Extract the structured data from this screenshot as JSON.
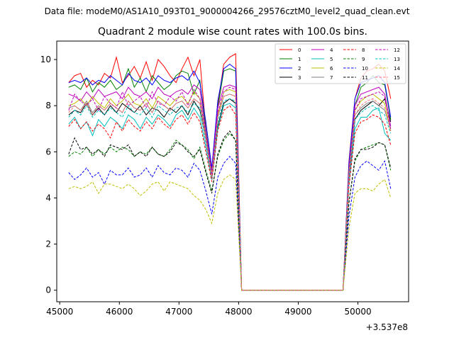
{
  "header": {
    "data_file": "Data file: modeM0/AS1A10_093T01_9000004266_29576cztM0_level2_quad_clean.evt"
  },
  "chart_data": {
    "type": "line",
    "title": "Quadrant 2 module wise count rates with 100.0s bins.",
    "xlabel": "",
    "ylabel": "",
    "x_offset_label": "+3.537e8",
    "xlim": [
      44950,
      50850
    ],
    "ylim": [
      -0.5,
      10.8
    ],
    "x_ticks": [
      45000,
      46000,
      47000,
      48000,
      49000,
      50000
    ],
    "x_tick_labels": [
      "45000",
      "46000",
      "47000",
      "48000",
      "49000",
      "50000"
    ],
    "y_ticks": [
      0,
      2,
      4,
      6,
      8,
      10
    ],
    "y_tick_labels": [
      "0",
      "2",
      "4",
      "6",
      "8",
      "10"
    ],
    "legend_position": "top-right",
    "segments": [
      {
        "x_start": 45150,
        "x_end": 47950,
        "step": 100
      },
      {
        "x_start": 48050,
        "x_end": 49750,
        "step": 100
      },
      {
        "x_start": 49850,
        "x_end": 50550,
        "step": 100
      }
    ],
    "series": [
      {
        "name": "0",
        "color": "#ff0000",
        "dash": false,
        "seg1": [
          9.0,
          9.3,
          9.4,
          8.8,
          9.1,
          8.9,
          9.4,
          9.2,
          10.1,
          9.0,
          9.3,
          9.7,
          9.2,
          9.9,
          9.1,
          10.0,
          9.7,
          9.3,
          9.0,
          9.6,
          10.1,
          9.3,
          10.0,
          7.0,
          5.1,
          8.0,
          9.8,
          10.1,
          10.25
        ],
        "seg3": [
          5.6,
          8.3,
          9.2,
          9.5,
          9.6,
          9.8,
          9.5,
          8.3
        ]
      },
      {
        "name": "1",
        "color": "#008000",
        "dash": false,
        "seg1": [
          8.8,
          8.9,
          8.7,
          9.2,
          8.6,
          9.0,
          8.8,
          9.1,
          8.7,
          8.9,
          9.6,
          8.8,
          9.2,
          8.6,
          9.3,
          9.0,
          8.7,
          8.9,
          9.3,
          9.5,
          9.4,
          8.5,
          9.1,
          7.0,
          5.1,
          7.9,
          9.5,
          9.6,
          9.5
        ],
        "seg3": [
          5.0,
          8.0,
          8.8,
          9.0,
          9.3,
          9.0,
          8.9,
          7.4
        ]
      },
      {
        "name": "2",
        "color": "#0000ff",
        "dash": false,
        "seg1": [
          9.0,
          9.1,
          9.0,
          9.2,
          8.9,
          9.1,
          9.0,
          9.3,
          9.1,
          8.9,
          9.4,
          9.1,
          9.0,
          9.2,
          8.9,
          9.3,
          9.1,
          9.0,
          9.2,
          9.3,
          9.1,
          9.5,
          9.0,
          7.3,
          5.3,
          8.2,
          9.6,
          9.8,
          9.6
        ],
        "seg3": [
          5.5,
          8.3,
          9.0,
          9.1,
          9.2,
          9.3,
          9.0,
          7.5
        ]
      },
      {
        "name": "3",
        "color": "#000000",
        "dash": false,
        "seg1": [
          7.6,
          7.8,
          7.7,
          8.1,
          7.6,
          7.9,
          7.6,
          8.0,
          7.7,
          8.1,
          7.9,
          7.7,
          8.0,
          7.6,
          7.9,
          7.8,
          7.5,
          7.9,
          7.7,
          8.0,
          7.6,
          8.2,
          7.8,
          6.6,
          4.9,
          7.1,
          8.1,
          8.3,
          8.1
        ],
        "seg3": [
          4.8,
          7.4,
          7.8,
          8.0,
          8.2,
          8.0,
          8.3,
          7.3
        ]
      },
      {
        "name": "4",
        "color": "#bf00bf",
        "dash": false,
        "seg1": [
          8.5,
          8.4,
          8.2,
          8.6,
          8.3,
          8.7,
          8.4,
          8.5,
          8.6,
          8.3,
          8.8,
          8.5,
          8.4,
          8.6,
          8.3,
          8.8,
          8.5,
          8.4,
          8.6,
          8.7,
          8.5,
          8.9,
          8.7,
          6.9,
          5.1,
          7.9,
          8.8,
          8.9,
          8.8
        ],
        "seg3": [
          5.2,
          8.0,
          8.5,
          8.6,
          8.7,
          8.8,
          8.5,
          7.1
        ]
      },
      {
        "name": "5",
        "color": "#00bfbf",
        "dash": false,
        "seg1": [
          7.2,
          7.5,
          7.0,
          7.3,
          6.7,
          7.4,
          7.1,
          7.5,
          7.3,
          7.0,
          7.6,
          7.4,
          7.0,
          7.5,
          7.2,
          7.6,
          7.4,
          7.1,
          7.6,
          7.8,
          7.4,
          7.9,
          7.5,
          6.2,
          4.8,
          7.0,
          8.0,
          8.1,
          7.9
        ],
        "seg3": [
          4.6,
          7.0,
          7.5,
          7.5,
          7.8,
          7.9,
          6.8,
          6.5
        ]
      },
      {
        "name": "6",
        "color": "#bfbf00",
        "dash": false,
        "seg1": [
          8.0,
          8.1,
          8.3,
          8.0,
          8.4,
          8.1,
          7.9,
          8.3,
          8.0,
          8.2,
          8.5,
          8.1,
          8.0,
          8.3,
          7.9,
          8.4,
          8.2,
          8.0,
          8.3,
          8.4,
          8.1,
          8.6,
          8.3,
          6.7,
          5.0,
          7.6,
          8.6,
          8.7,
          8.6
        ],
        "seg3": [
          5.1,
          7.8,
          8.2,
          8.4,
          8.5,
          8.3,
          8.1,
          6.9
        ]
      },
      {
        "name": "7",
        "color": "#808080",
        "dash": false,
        "seg1": [
          7.9,
          8.0,
          7.8,
          8.2,
          7.7,
          8.0,
          7.8,
          8.1,
          7.9,
          7.7,
          8.2,
          7.9,
          7.8,
          8.1,
          7.7,
          8.2,
          8.0,
          7.8,
          8.1,
          8.2,
          7.9,
          8.3,
          8.1,
          6.6,
          4.9,
          7.5,
          8.4,
          8.5,
          8.4
        ],
        "seg3": [
          5.0,
          7.6,
          7.9,
          8.1,
          8.2,
          8.0,
          7.8,
          7.0
        ]
      },
      {
        "name": "8",
        "color": "#ff0000",
        "dash": true,
        "seg1": [
          7.1,
          7.4,
          7.0,
          7.3,
          6.9,
          7.2,
          7.0,
          6.6,
          7.3,
          6.9,
          7.4,
          7.1,
          6.9,
          7.3,
          7.0,
          7.5,
          7.2,
          7.0,
          7.4,
          7.6,
          7.2,
          7.7,
          7.3,
          6.0,
          4.7,
          6.9,
          7.8,
          8.0,
          7.6
        ],
        "seg3": [
          4.5,
          6.8,
          7.3,
          7.4,
          7.6,
          7.5,
          7.2,
          6.3
        ]
      },
      {
        "name": "9",
        "color": "#008000",
        "dash": true,
        "seg1": [
          5.8,
          6.0,
          5.9,
          6.2,
          5.8,
          6.1,
          5.9,
          6.2,
          6.0,
          6.2,
          6.1,
          5.8,
          6.0,
          5.9,
          6.2,
          5.9,
          5.8,
          6.1,
          6.5,
          6.3,
          6.1,
          5.7,
          6.2,
          5.2,
          4.3,
          5.8,
          6.5,
          6.8,
          6.5
        ],
        "seg3": [
          3.8,
          5.6,
          6.1,
          6.2,
          6.3,
          6.4,
          6.3,
          5.2
        ]
      },
      {
        "name": "10",
        "color": "#0000ff",
        "dash": true,
        "seg1": [
          5.1,
          4.8,
          5.0,
          5.3,
          4.9,
          5.1,
          4.6,
          5.2,
          5.0,
          5.0,
          5.3,
          4.9,
          5.0,
          5.3,
          4.9,
          5.4,
          5.1,
          5.0,
          5.3,
          5.2,
          4.9,
          5.5,
          5.2,
          4.3,
          3.3,
          4.9,
          5.5,
          5.8,
          5.5
        ],
        "seg3": [
          3.2,
          4.9,
          5.4,
          5.6,
          5.4,
          5.2,
          5.6,
          4.4
        ]
      },
      {
        "name": "11",
        "color": "#000000",
        "dash": true,
        "seg1": [
          5.9,
          6.6,
          6.1,
          6.2,
          5.9,
          6.1,
          5.8,
          6.3,
          6.2,
          6.1,
          6.3,
          5.8,
          6.0,
          5.8,
          6.2,
          5.9,
          5.8,
          6.0,
          6.4,
          6.3,
          6.0,
          5.8,
          6.1,
          5.1,
          4.2,
          5.9,
          6.6,
          6.9,
          6.5
        ],
        "seg3": [
          3.8,
          5.7,
          6.1,
          6.1,
          6.2,
          6.4,
          6.3,
          5.3
        ]
      },
      {
        "name": "12",
        "color": "#bf00bf",
        "dash": true,
        "seg1": [
          7.8,
          8.5,
          8.2,
          8.0,
          8.3,
          7.8,
          8.4,
          8.1,
          7.9,
          8.6,
          8.0,
          8.2,
          8.4,
          7.9,
          8.6,
          8.1,
          8.0,
          8.4,
          8.2,
          8.6,
          8.0,
          8.7,
          8.3,
          6.8,
          5.0,
          7.7,
          8.6,
          8.8,
          8.7
        ],
        "seg3": [
          5.0,
          7.8,
          8.3,
          8.4,
          8.5,
          8.6,
          8.4,
          7.0
        ]
      },
      {
        "name": "13",
        "color": "#00bfbf",
        "dash": true,
        "seg1": [
          7.5,
          7.8,
          7.6,
          8.0,
          7.5,
          7.8,
          7.6,
          7.9,
          7.7,
          7.5,
          8.0,
          7.7,
          7.6,
          7.9,
          7.5,
          8.0,
          7.8,
          7.6,
          7.9,
          8.0,
          7.7,
          8.1,
          7.9,
          6.4,
          4.8,
          7.3,
          8.2,
          8.3,
          8.2
        ],
        "seg3": [
          4.8,
          7.4,
          7.7,
          7.9,
          8.0,
          7.8,
          7.6,
          6.8
        ]
      },
      {
        "name": "14",
        "color": "#bfbf00",
        "dash": true,
        "seg1": [
          4.4,
          4.5,
          4.4,
          4.5,
          4.7,
          4.2,
          4.6,
          4.6,
          4.5,
          4.4,
          4.6,
          4.4,
          4.1,
          4.3,
          4.6,
          4.7,
          4.3,
          4.7,
          4.6,
          4.5,
          4.4,
          4.1,
          3.9,
          3.5,
          2.9,
          4.2,
          4.8,
          5.0,
          4.8
        ],
        "seg3": [
          2.7,
          4.2,
          4.4,
          4.4,
          4.3,
          4.6,
          4.8,
          4.0
        ]
      },
      {
        "name": "15",
        "color": "#ff7070",
        "dash": true,
        "seg1": [
          7.7,
          8.0,
          7.8,
          8.1,
          7.6,
          8.0,
          7.8,
          8.1,
          7.9,
          7.7,
          8.2,
          7.9,
          7.8,
          8.1,
          7.7,
          8.2,
          8.0,
          7.8,
          8.1,
          8.2,
          7.9,
          8.3,
          8.1,
          6.5,
          4.9,
          7.5,
          8.4,
          8.5,
          8.4
        ],
        "seg3": [
          4.9,
          7.6,
          8.0,
          8.2,
          8.3,
          8.1,
          7.9,
          6.9
        ]
      }
    ]
  }
}
